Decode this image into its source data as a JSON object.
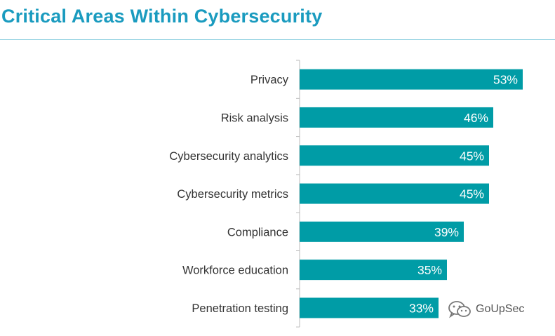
{
  "chart_data": {
    "type": "bar",
    "orientation": "horizontal",
    "title": "Critical Areas Within Cybersecurity",
    "categories": [
      "Privacy",
      "Risk analysis",
      "Cybersecurity analytics",
      "Cybersecurity metrics",
      "Compliance",
      "Workforce education",
      "Penetration testing"
    ],
    "values": [
      53,
      46,
      45,
      45,
      39,
      35,
      33
    ],
    "value_labels": [
      "53%",
      "46%",
      "45%",
      "45%",
      "39%",
      "35%",
      "33%"
    ],
    "unit": "%",
    "xlim": [
      0,
      60
    ],
    "grid": false,
    "legend": "none",
    "bar_color": "#009ca6"
  },
  "watermark": {
    "text": "GoUpSec",
    "icon": "wechat-icon"
  }
}
